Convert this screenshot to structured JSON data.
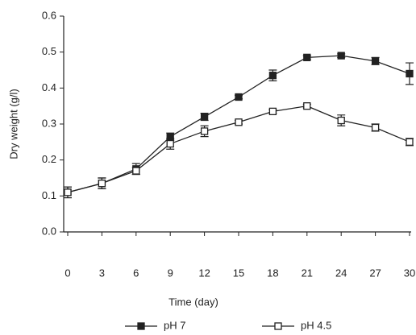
{
  "chart_data": {
    "type": "line",
    "x_label": "Time (day)",
    "y_label": "Dry weight (g/l)",
    "x": [
      0,
      3,
      6,
      9,
      12,
      15,
      18,
      21,
      24,
      27,
      30
    ],
    "series": [
      {
        "name": "pH 7",
        "color": "#222222",
        "marker": "filled-square",
        "values": [
          0.11,
          0.135,
          0.175,
          0.265,
          0.32,
          0.375,
          0.435,
          0.485,
          0.49,
          0.475,
          0.44
        ],
        "errors": [
          0.015,
          0.015,
          0.015,
          0.01,
          0.01,
          0.005,
          0.015,
          0.005,
          0.005,
          0.01,
          0.03
        ]
      },
      {
        "name": "pH 4.5",
        "color": "#222222",
        "marker": "open-square",
        "values": [
          0.11,
          0.135,
          0.17,
          0.245,
          0.28,
          0.305,
          0.335,
          0.35,
          0.31,
          0.29,
          0.25
        ],
        "errors": [
          0.015,
          0.015,
          0.01,
          0.015,
          0.015,
          0.005,
          0.005,
          0.005,
          0.015,
          0.01,
          0.01
        ]
      }
    ],
    "xlim": [
      0,
      30
    ],
    "xticks": [
      0,
      3,
      6,
      9,
      12,
      15,
      18,
      21,
      24,
      27,
      30
    ],
    "ylim": [
      0,
      0.6
    ],
    "yticks": [
      {
        "value": 0,
        "label": "0.0"
      },
      0.1,
      0.2,
      0.3,
      0.4,
      0.5,
      0.6
    ],
    "legend": "bottom"
  }
}
